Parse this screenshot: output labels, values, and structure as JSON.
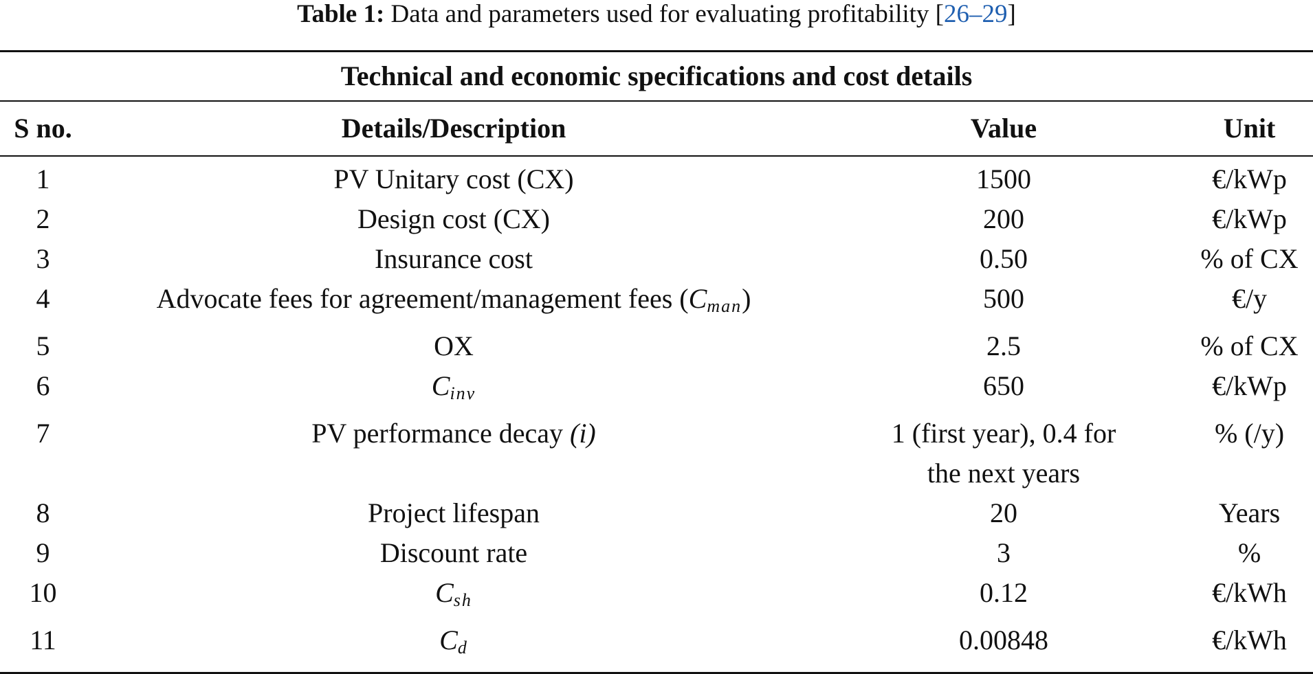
{
  "caption": {
    "label": "Table 1:",
    "text": "Data and parameters used for evaluating profitability",
    "ref_open": "[",
    "ref_start": "26",
    "ref_dash": "–",
    "ref_end": "29",
    "ref_close": "]"
  },
  "table": {
    "group_title": "Technical and economic specifications and cost details",
    "headers": {
      "sno": "S no.",
      "desc": "Details/Description",
      "value": "Value",
      "unit": "Unit"
    },
    "rows": [
      {
        "sno": "1",
        "desc": "PV Unitary cost (CX)",
        "value": "1500",
        "unit": "€/kWp"
      },
      {
        "sno": "2",
        "desc": "Design cost (CX)",
        "value": "200",
        "unit": "€/kWp"
      },
      {
        "sno": "3",
        "desc": "Insurance cost",
        "value": "0.50",
        "unit": "% of CX"
      },
      {
        "sno": "4",
        "desc_pre": "Advocate fees for agreement/management fees (",
        "desc_math": "C",
        "desc_sub": "man",
        "desc_post": ")",
        "value": "500",
        "unit": "€/y"
      },
      {
        "sno": "5",
        "desc": "OX",
        "value": "2.5",
        "unit": "% of CX"
      },
      {
        "sno": "6",
        "desc_math": "C",
        "desc_sub": "inv",
        "value": "650",
        "unit": "€/kWp"
      },
      {
        "sno": "7",
        "desc_pre": "PV performance decay ",
        "desc_ital": "(i)",
        "value": "1 (first year), 0.4 for the next years",
        "unit": "% (/y)"
      },
      {
        "sno": "8",
        "desc": "Project lifespan",
        "value": "20",
        "unit": "Years"
      },
      {
        "sno": "9",
        "desc": "Discount rate",
        "value": "3",
        "unit": "%"
      },
      {
        "sno": "10",
        "desc_math": "C",
        "desc_sub": "sh",
        "value": "0.12",
        "unit": "€/kWh"
      },
      {
        "sno": "11",
        "desc_math": "C",
        "desc_sub": "d",
        "value": "0.00848",
        "unit": "€/kWh"
      }
    ]
  }
}
